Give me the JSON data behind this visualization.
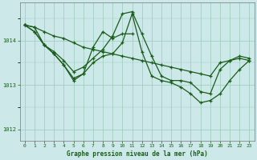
{
  "title": "Graphe pression niveau de la mer (hPa)",
  "bg_color": "#cce8e8",
  "line_color": "#1a5c1a",
  "grid_color": "#99ccbb",
  "xlim": [
    -0.5,
    23.5
  ],
  "ylim": [
    1011.75,
    1014.85
  ],
  "yticks": [
    1012,
    1013,
    1014
  ],
  "xticks": [
    0,
    1,
    2,
    3,
    4,
    5,
    6,
    7,
    8,
    9,
    10,
    11,
    12,
    13,
    14,
    15,
    16,
    17,
    18,
    19,
    20,
    21,
    22,
    23
  ],
  "series": [
    {
      "x": [
        0,
        1,
        2,
        3,
        4,
        5,
        6,
        7,
        8,
        9,
        10,
        11,
        12,
        13,
        14,
        15,
        16,
        17,
        18,
        19,
        20,
        21,
        22,
        23
      ],
      "y": [
        1014.35,
        1014.3,
        1014.2,
        1014.1,
        1014.05,
        1013.95,
        1013.85,
        1013.8,
        1013.75,
        1013.7,
        1013.65,
        1013.6,
        1013.55,
        1013.5,
        1013.45,
        1013.4,
        1013.35,
        1013.3,
        1013.25,
        1013.2,
        1013.5,
        1013.55,
        1013.6,
        1013.55
      ]
    },
    {
      "x": [
        0,
        1,
        2,
        3,
        4,
        5,
        6,
        7,
        8,
        9,
        10,
        11,
        12,
        13,
        14,
        15,
        16,
        17,
        18,
        19,
        20,
        21,
        22,
        23
      ],
      "y": [
        1014.35,
        1014.2,
        1013.9,
        1013.75,
        1013.55,
        1013.3,
        1013.4,
        1013.6,
        1013.8,
        1014.1,
        1014.6,
        1014.65,
        1014.15,
        1013.65,
        1013.2,
        1013.1,
        1013.1,
        1013.05,
        1012.85,
        1012.8,
        1013.35,
        1013.55,
        1013.65,
        1013.6
      ]
    },
    {
      "x": [
        0,
        1,
        2,
        3,
        4,
        5,
        6,
        7,
        8,
        9,
        10,
        11
      ],
      "y": [
        1014.35,
        1014.2,
        1013.9,
        1013.7,
        1013.45,
        1013.1,
        1013.25,
        1013.85,
        1014.2,
        1014.05,
        1014.15,
        1014.15
      ]
    },
    {
      "x": [
        0,
        1,
        2,
        3,
        4,
        5,
        6,
        7,
        8,
        9,
        10,
        11,
        12,
        13,
        14,
        15,
        16,
        17,
        18,
        19,
        20,
        21,
        22,
        23
      ],
      "y": [
        1014.35,
        1014.3,
        1013.9,
        1013.7,
        1013.45,
        1013.15,
        1013.25,
        1013.5,
        1013.65,
        1013.7,
        1013.95,
        1014.6,
        1013.75,
        1013.2,
        1013.1,
        1013.05,
        1012.95,
        1012.8,
        1012.6,
        1012.65,
        1012.8,
        1013.1,
        1013.35,
        1013.55
      ]
    }
  ]
}
